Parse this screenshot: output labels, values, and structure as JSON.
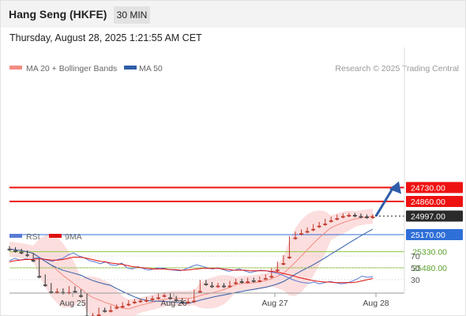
{
  "header": {
    "title": "Hang Seng (HKFE)",
    "timeframe": "30 MIN",
    "datetime": "Thursday, August 28, 2025 1:21:55 AM CET"
  },
  "legend": {
    "items": [
      {
        "label": "MA 20 + Bollinger Bands",
        "color": "#f28b82"
      },
      {
        "label": "MA 50",
        "color": "#2f5da8"
      }
    ],
    "credit": "Research © 2025 Trading Central"
  },
  "chart_data": [
    {
      "type": "line",
      "title": "",
      "x_ticks": [
        "Aug 25",
        "Aug 26",
        "Aug 27",
        "Aug 28"
      ],
      "y_range": [
        24700,
        25800
      ],
      "close_series": [
        {
          "date": "Aug 25",
          "values": [
            25305,
            25320,
            25335,
            25360,
            25410,
            25560,
            25640,
            25705,
            25690,
            25710,
            25670,
            25700,
            25740,
            25930,
            25920,
            25870,
            25880,
            25850,
            25840,
            25820
          ]
        },
        {
          "date": "Aug 26",
          "values": [
            25800,
            25790,
            25785,
            25770,
            25760,
            25740,
            25730,
            25760,
            25780,
            25800,
            25790,
            25700,
            25610,
            25630,
            25650,
            25640,
            25650,
            25620,
            25600,
            25610,
            25590,
            25600,
            25580
          ]
        },
        {
          "date": "Aug 27",
          "values": [
            25560,
            25500,
            25440,
            25380,
            25200,
            25160,
            25140,
            25120,
            25090,
            25070,
            25040,
            25020,
            25000,
            24990,
            24985,
            24990,
            25000,
            25005
          ]
        },
        {
          "date": "Aug 28",
          "values": [
            24997
          ]
        }
      ],
      "series": [
        {
          "name": "MA 20 + Bollinger Bands",
          "color": "#f28b82"
        },
        {
          "name": "MA 50",
          "color": "#2f5da8"
        }
      ],
      "levels": [
        {
          "value": 25480.0,
          "label": "25480.00",
          "kind": "resistance",
          "color": "#8cc63f"
        },
        {
          "value": 25330.0,
          "label": "25330.00",
          "kind": "resistance",
          "color": "#8cc63f"
        },
        {
          "value": 25170.0,
          "label": "25170.00",
          "kind": "pivot",
          "color": "#2f6fd8"
        },
        {
          "value": 24997.0,
          "label": "24997.00",
          "kind": "last-price",
          "color": "#333333"
        },
        {
          "value": 24860.0,
          "label": "24860.00",
          "kind": "support",
          "color": "#ee1111"
        },
        {
          "value": 24730.0,
          "label": "24730.00",
          "kind": "support",
          "color": "#ee1111"
        }
      ],
      "forecast_arrow": {
        "from": 24997,
        "to": 24760,
        "direction": "down",
        "color": "#2f5da8"
      }
    },
    {
      "type": "line",
      "title": "",
      "y_ticks": [
        70,
        50,
        30
      ],
      "legend": [
        "RSI",
        "9MA"
      ],
      "series": [
        {
          "name": "RSI",
          "color": "#5b7bd5",
          "values": [
            62,
            66,
            63,
            65,
            64,
            67,
            66,
            63,
            61,
            64,
            66,
            72,
            75,
            70,
            67,
            62,
            60,
            57,
            60,
            55,
            54,
            58,
            50,
            48,
            52,
            49,
            46,
            48,
            50,
            49,
            47,
            46,
            45,
            48,
            52,
            55,
            53,
            50,
            48,
            50,
            47,
            44,
            46,
            48,
            45,
            42,
            44,
            46,
            45,
            43,
            41,
            38,
            34,
            30,
            27,
            25,
            24,
            26,
            23,
            25,
            27,
            25,
            23,
            24,
            27,
            31,
            36,
            34,
            35
          ]
        },
        {
          "name": "9MA",
          "color": "#e01010",
          "values": [
            60,
            62,
            63,
            64,
            64,
            65,
            65,
            64,
            63,
            63,
            64,
            66,
            68,
            68,
            67,
            65,
            63,
            61,
            60,
            58,
            57,
            56,
            54,
            52,
            51,
            50,
            49,
            48,
            48,
            48,
            47,
            47,
            46,
            46,
            47,
            48,
            49,
            49,
            49,
            49,
            48,
            47,
            46,
            46,
            46,
            45,
            45,
            45,
            45,
            44,
            43,
            41,
            39,
            37,
            34,
            32,
            30,
            28,
            27,
            26,
            26,
            25,
            25,
            25,
            25,
            26,
            28,
            30,
            32
          ]
        }
      ]
    }
  ],
  "colors": {
    "up_candle": "#333333",
    "down_candle": "#c0392b",
    "band_fill": "#fbd3d3"
  }
}
